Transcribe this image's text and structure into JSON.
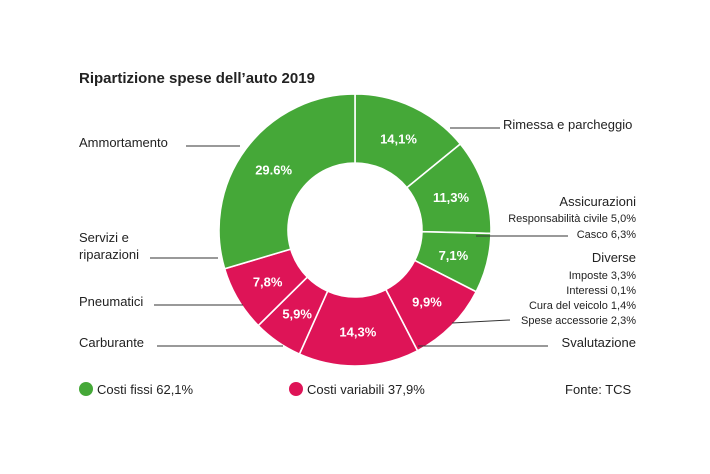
{
  "chart_data": {
    "type": "pie",
    "title": "Ripartizione spese dell’auto 2019",
    "slices": [
      {
        "label": "Rimessa e parcheggio",
        "value": 14.1,
        "text": "14,1%",
        "group": "fixed"
      },
      {
        "label": "Assicurazioni",
        "value": 11.3,
        "text": "11,3%",
        "group": "fixed",
        "details": [
          "Responsabilità civile 5,0%",
          "Casco 6,3%"
        ]
      },
      {
        "label": "Diverse",
        "value": 7.1,
        "text": "7,1%",
        "group": "fixed",
        "details": [
          "Imposte 3,3%",
          "Interessi 0,1%",
          "Cura del veicolo 1,4%",
          "Spese accessorie 2,3%"
        ]
      },
      {
        "label": "Svalutazione",
        "value": 9.9,
        "text": "9,9%",
        "group": "variable"
      },
      {
        "label": "Carburante",
        "value": 14.3,
        "text": "14,3%",
        "group": "variable"
      },
      {
        "label": "Pneumatici",
        "value": 5.9,
        "text": "5,9%",
        "group": "variable"
      },
      {
        "label": "Servizi e riparazioni",
        "lines": [
          "Servizi e",
          "riparazioni"
        ],
        "value": 7.8,
        "text": "7,8%",
        "group": "variable"
      },
      {
        "label": "Ammortamento",
        "value": 29.6,
        "text": "29.6%",
        "group": "fixed"
      }
    ],
    "legend": [
      {
        "label": "Costi fissi 62,1%",
        "group": "fixed"
      },
      {
        "label": "Costi variabili 37,9%",
        "group": "variable"
      }
    ],
    "source": "Fonte: TCS"
  },
  "colors": {
    "fixed": "#45A838",
    "variable": "#DE1457",
    "text": "#222222",
    "line": "#333333"
  }
}
